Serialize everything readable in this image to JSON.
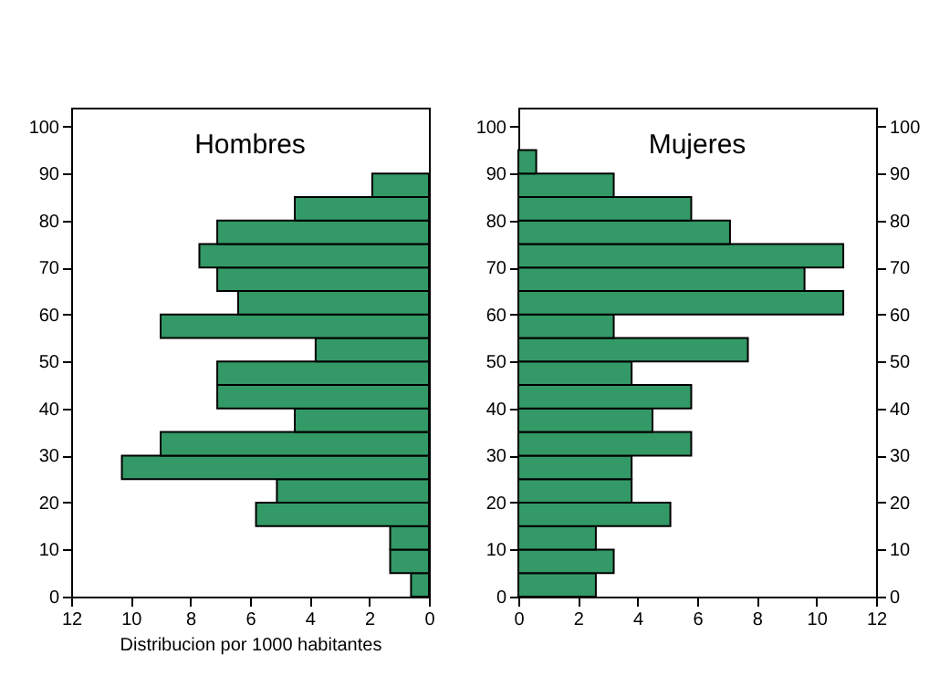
{
  "chart_data": [
    {
      "type": "histogram",
      "orientation": "horizontal",
      "title": "Hombres",
      "xlabel": "Distribucion por 1000 habitantes",
      "color": "#339966",
      "bins": [
        0,
        5,
        10,
        15,
        20,
        25,
        30,
        35,
        40,
        45,
        50,
        55,
        60,
        65,
        70,
        75,
        80,
        85,
        90
      ],
      "values": [
        0.6,
        1.3,
        1.3,
        5.8,
        5.1,
        10.3,
        9.0,
        4.5,
        7.1,
        7.1,
        3.8,
        9.0,
        6.4,
        7.1,
        7.7,
        7.1,
        4.5,
        1.9
      ],
      "xlim": [
        12,
        0
      ],
      "xticks": [
        12,
        10,
        8,
        6,
        4,
        2,
        0
      ],
      "ylim": [
        0,
        104
      ],
      "yticks": [
        0,
        10,
        20,
        30,
        40,
        50,
        60,
        70,
        80,
        90,
        100
      ],
      "grid": false
    },
    {
      "type": "histogram",
      "orientation": "horizontal",
      "title": "Mujeres",
      "color": "#339966",
      "bins": [
        0,
        5,
        10,
        15,
        20,
        25,
        30,
        35,
        40,
        45,
        50,
        55,
        60,
        65,
        70,
        75,
        80,
        85,
        90,
        95
      ],
      "values": [
        2.6,
        3.2,
        2.6,
        5.1,
        3.8,
        3.8,
        5.8,
        4.5,
        5.8,
        3.8,
        7.7,
        3.2,
        10.9,
        9.6,
        10.9,
        7.1,
        5.8,
        3.2,
        0.6
      ],
      "xlim": [
        0,
        12
      ],
      "xticks": [
        0,
        2,
        4,
        6,
        8,
        10,
        12
      ],
      "ylim": [
        0,
        104
      ],
      "yticks": [
        0,
        10,
        20,
        30,
        40,
        50,
        60,
        70,
        80,
        90,
        100
      ],
      "y2lim": [
        0,
        104
      ],
      "y2ticks": [
        0,
        10,
        20,
        30,
        40,
        50,
        60,
        70,
        80,
        90,
        100
      ],
      "grid": false
    }
  ]
}
